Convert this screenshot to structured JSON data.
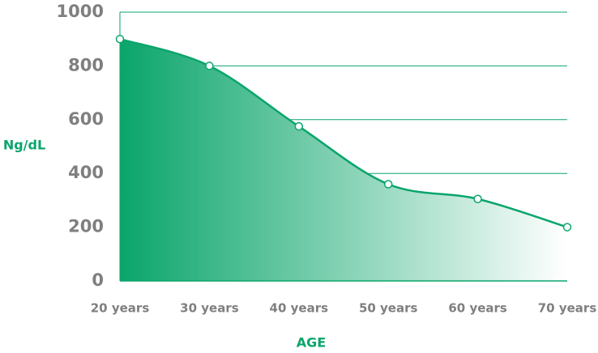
{
  "chart_data": {
    "type": "area",
    "x_label": "AGE",
    "y_label": "Ng/dL",
    "categories": [
      "20 years",
      "30 years",
      "40 years",
      "50 years",
      "60 years",
      "70 years"
    ],
    "values": [
      900,
      800,
      575,
      360,
      305,
      200
    ],
    "color": "#0aa56b",
    "ylim": [
      0,
      1000
    ],
    "yticks": [
      0,
      200,
      400,
      600,
      800,
      1000
    ],
    "grid": true
  }
}
